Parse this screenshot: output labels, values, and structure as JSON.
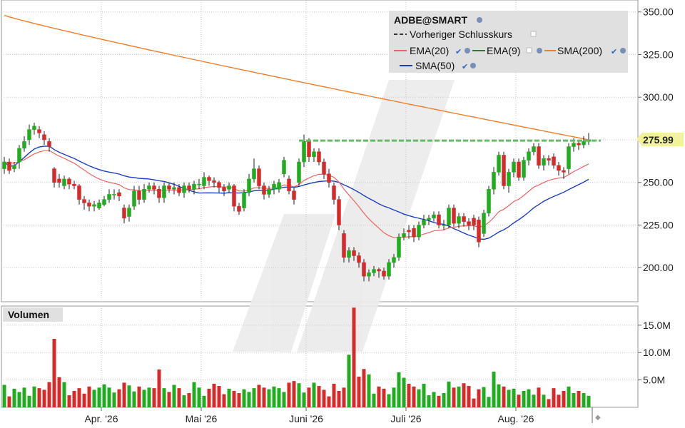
{
  "chart_data": {
    "type": "candlestick",
    "symbol_label": "ADBE@SMART",
    "legend": {
      "symbol": "ADBE@SMART",
      "prev_close_label": "Vorheriger Schlusskurs",
      "ema20_label": "EMA(20)",
      "ema9_label": "EMA(9)",
      "sma200_label": "SMA(200)",
      "sma50_label": "SMA(50)"
    },
    "colors": {
      "up": "#1fad1f",
      "down": "#d62a2a",
      "ema20": "#f06262",
      "ema9": "#2e7d2e",
      "sma200": "#f07b28",
      "sma50": "#1d3fbf",
      "prev_close": "#66bb66",
      "price_tag": "#f2f29a",
      "grid": "#c8c8c8",
      "legend_bg": "#e0e0e0",
      "watermark": "#e9e9e9"
    },
    "last_price_label": "275.99",
    "volume_title": "Volumen",
    "y_ticks": [
      {
        "value": 200,
        "label": "200.00"
      },
      {
        "value": 225,
        "label": "225.00"
      },
      {
        "value": 250,
        "label": "250.00"
      },
      {
        "value": 275,
        "label": "275.00"
      },
      {
        "value": 300,
        "label": "300.00"
      },
      {
        "value": 325,
        "label": "325.00"
      },
      {
        "value": 350,
        "label": "350.00"
      }
    ],
    "volume_ticks": [
      {
        "value": 5,
        "label": "5.0M"
      },
      {
        "value": 10,
        "label": "10.0M"
      },
      {
        "value": 15,
        "label": "15.0M"
      }
    ],
    "x_ticks": [
      {
        "index": 19,
        "label": "Apr. '26"
      },
      {
        "index": 39,
        "label": "Mai '26"
      },
      {
        "index": 60,
        "label": "Juni '26"
      },
      {
        "index": 80,
        "label": "Juli '26"
      },
      {
        "index": 102,
        "label": "Aug. '26"
      }
    ],
    "ylim": [
      180,
      357
    ],
    "volume_ylim": [
      0,
      18.5
    ],
    "prev_close": 274.5,
    "grid": true,
    "legend_position": "top-right",
    "close": [
      262,
      257,
      260,
      270,
      274,
      281,
      283,
      279,
      275,
      271,
      250,
      250,
      252,
      249,
      248,
      240,
      238,
      236,
      237,
      238,
      240,
      243,
      243,
      242,
      229,
      235,
      245,
      240,
      246,
      248,
      246,
      241,
      248,
      246,
      247,
      244,
      248,
      246,
      249,
      249,
      253,
      251,
      250,
      247,
      245,
      248,
      236,
      233,
      244,
      252,
      258,
      248,
      243,
      246,
      249,
      250,
      263,
      245,
      240,
      262,
      274,
      265,
      268,
      262,
      255,
      250,
      240,
      225,
      206,
      210,
      207,
      203,
      195,
      197,
      199,
      198,
      195,
      203,
      206,
      218,
      220,
      221,
      218,
      225,
      228,
      229,
      231,
      225,
      225,
      235,
      226,
      230,
      227,
      225,
      225,
      215,
      232,
      246,
      256,
      266,
      248,
      256,
      262,
      253,
      263,
      268,
      271,
      260,
      264,
      263,
      260,
      257,
      256,
      271,
      273,
      272,
      274,
      275
    ],
    "open": [
      258,
      262,
      258,
      262,
      270,
      275,
      281,
      281,
      278,
      274,
      258,
      252,
      248,
      252,
      249,
      248,
      240,
      238,
      236,
      235,
      237,
      240,
      243,
      244,
      235,
      230,
      236,
      245,
      240,
      246,
      248,
      246,
      241,
      248,
      246,
      247,
      244,
      248,
      246,
      249,
      248,
      253,
      251,
      250,
      247,
      246,
      248,
      236,
      235,
      244,
      252,
      258,
      248,
      243,
      246,
      246,
      255,
      252,
      245,
      250,
      262,
      274,
      265,
      268,
      262,
      255,
      248,
      240,
      220,
      206,
      210,
      207,
      203,
      195,
      197,
      199,
      198,
      195,
      203,
      206,
      218,
      222,
      223,
      218,
      225,
      228,
      229,
      231,
      225,
      225,
      235,
      226,
      230,
      227,
      229,
      228,
      220,
      232,
      246,
      256,
      266,
      248,
      256,
      262,
      253,
      263,
      268,
      271,
      260,
      264,
      265,
      260,
      257,
      258,
      271,
      273,
      272,
      274
    ],
    "high": [
      265,
      264,
      262,
      272,
      277,
      284,
      285,
      283,
      280,
      276,
      259,
      255,
      254,
      253,
      251,
      249,
      242,
      240,
      239,
      240,
      242,
      246,
      246,
      246,
      237,
      237,
      248,
      248,
      249,
      250,
      250,
      248,
      250,
      250,
      250,
      249,
      250,
      250,
      251,
      252,
      256,
      254,
      253,
      251,
      249,
      250,
      249,
      238,
      246,
      255,
      264,
      260,
      250,
      248,
      251,
      252,
      265,
      254,
      247,
      264,
      278,
      276,
      270,
      270,
      264,
      258,
      250,
      242,
      222,
      212,
      212,
      209,
      205,
      199,
      201,
      200,
      200,
      205,
      208,
      220,
      223,
      225,
      225,
      227,
      231,
      231,
      233,
      233,
      228,
      237,
      237,
      232,
      232,
      229,
      231,
      230,
      234,
      248,
      259,
      268,
      268,
      258,
      264,
      264,
      265,
      270,
      273,
      273,
      266,
      266,
      267,
      262,
      259,
      273,
      276,
      275,
      277,
      279
    ],
    "low": [
      255,
      255,
      256,
      258,
      268,
      272,
      278,
      276,
      272,
      268,
      247,
      247,
      246,
      246,
      246,
      237,
      234,
      233,
      233,
      234,
      236,
      238,
      240,
      239,
      226,
      227,
      234,
      237,
      238,
      244,
      243,
      238,
      238,
      244,
      243,
      242,
      241,
      244,
      243,
      246,
      246,
      248,
      247,
      244,
      242,
      244,
      233,
      231,
      233,
      242,
      250,
      246,
      240,
      241,
      243,
      244,
      253,
      243,
      237,
      248,
      259,
      262,
      262,
      260,
      252,
      247,
      237,
      222,
      203,
      203,
      204,
      200,
      192,
      192,
      195,
      194,
      193,
      193,
      200,
      204,
      216,
      217,
      215,
      216,
      223,
      225,
      227,
      223,
      222,
      223,
      224,
      223,
      224,
      222,
      222,
      212,
      218,
      230,
      243,
      254,
      246,
      244,
      253,
      251,
      251,
      260,
      266,
      258,
      257,
      260,
      258,
      254,
      252,
      255,
      268,
      269,
      270,
      272
    ],
    "volume": [
      4.1,
      2.0,
      3.4,
      2.8,
      3.6,
      2.1,
      3.8,
      3.5,
      3.2,
      4.6,
      12.5,
      5.5,
      4.6,
      2.2,
      3.0,
      3.5,
      2.5,
      3.8,
      3.2,
      3.6,
      4.2,
      3.6,
      2.7,
      3.3,
      4.5,
      4.0,
      2.9,
      3.8,
      3.2,
      3.6,
      3.5,
      6.9,
      3.5,
      2.8,
      4.1,
      3.5,
      2.2,
      2.6,
      4.6,
      3.6,
      2.1,
      3.4,
      4.3,
      3.9,
      2.4,
      3.4,
      3.0,
      2.6,
      3.3,
      2.8,
      3.5,
      4.1,
      3.6,
      3.3,
      3.8,
      3.5,
      2.8,
      4.5,
      4.8,
      4.4,
      2.7,
      3.6,
      4.5,
      3.9,
      3.2,
      2.0,
      4.3,
      3.0,
      3.6,
      9.6,
      18.2,
      5.6,
      7.0,
      6.0,
      2.5,
      3.8,
      3.4,
      2.4,
      3.6,
      6.4,
      5.4,
      4.3,
      3.8,
      3.3,
      4.3,
      2.2,
      2.8,
      2.1,
      2.6,
      4.7,
      3.6,
      3.8,
      4.4,
      3.9,
      1.6,
      3.3,
      3.7,
      1.9,
      6.5,
      4.2,
      3.8,
      3.2,
      3.4,
      2.3,
      3.0,
      3.3,
      2.3,
      3.6,
      2.3,
      1.5,
      3.5,
      2.3,
      3.0,
      3.8,
      2.6,
      3.0,
      2.6,
      2.1
    ]
  }
}
